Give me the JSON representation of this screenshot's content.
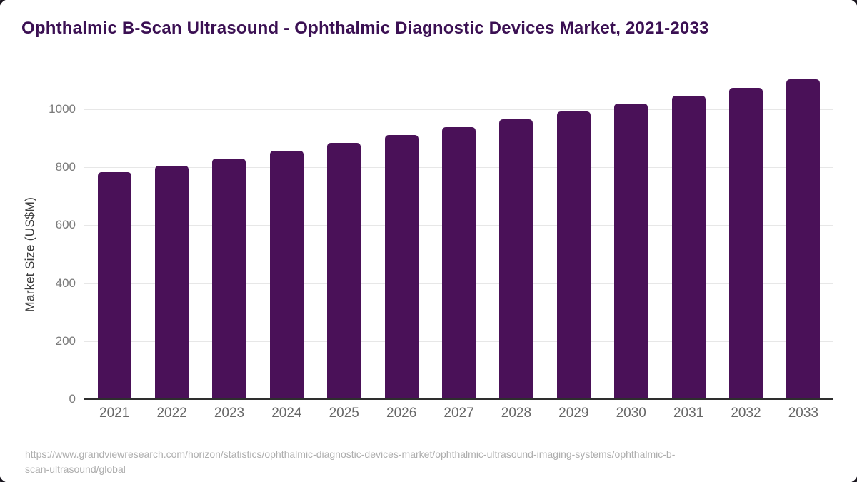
{
  "header": {
    "title": "Ophthalmic B-Scan Ultrasound - Ophthalmic Diagnostic Devices Market, 2021-2033",
    "title_color": "#3b1053"
  },
  "chart_data": {
    "type": "bar",
    "categories": [
      "2021",
      "2022",
      "2023",
      "2024",
      "2025",
      "2026",
      "2027",
      "2028",
      "2029",
      "2030",
      "2031",
      "2032",
      "2033"
    ],
    "values": [
      783,
      806,
      829,
      857,
      885,
      911,
      938,
      965,
      992,
      1019,
      1046,
      1074,
      1103
    ],
    "title": "Ophthalmic B-Scan Ultrasound - Ophthalmic Diagnostic Devices Market, 2021-2033",
    "xlabel": "",
    "ylabel": "Market Size (US$M)",
    "ylim": [
      0,
      1150
    ],
    "yticks": [
      0,
      200,
      400,
      600,
      800,
      1000
    ],
    "bar_color": "#4a1158",
    "grid": "horizontal",
    "legend": "none"
  },
  "footer": {
    "source_url": "https://www.grandviewresearch.com/horizon/statistics/ophthalmic-diagnostic-devices-market/ophthalmic-ultrasound-imaging-systems/ophthalmic-b-scan-ultrasound/global"
  }
}
